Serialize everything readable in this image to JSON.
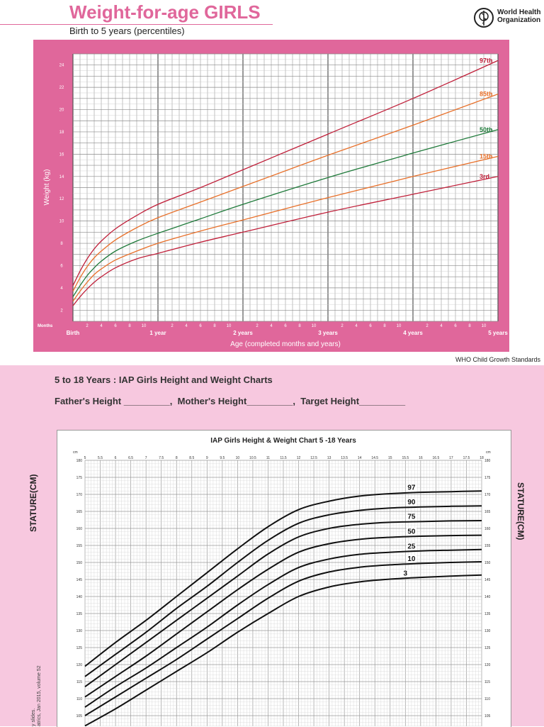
{
  "who": {
    "title": "Weight-for-age GIRLS",
    "subtitle": "Birth to 5 years (percentiles)",
    "org_line1": "World Health",
    "org_line2": "Organization",
    "standards": "WHO Child Growth Standards"
  },
  "iap": {
    "heading": "5 to 18 Years : IAP Girls Height and Weight Charts",
    "parents_line": "Father's Height _________,  Mother's Height_________,  Target Height_________",
    "side_note_1": "y slides.",
    "side_note_2": "atrics, Jan 2015, volume 52"
  },
  "colors": {
    "who_pink": "#e0679b",
    "p97": "#c0203a",
    "p85": "#e8702a",
    "p50": "#1f7a3a",
    "p15": "#e8702a",
    "p3": "#c0203a",
    "iap_bg": "#f7c8df"
  },
  "chart_data": [
    {
      "type": "line",
      "ylabel": "Weight (kg)",
      "xlabel": "Age (completed months and years)",
      "x_start_label": "Months",
      "x_units": "months",
      "xlim": [
        0,
        60
      ],
      "ylim": [
        1,
        25
      ],
      "y_ticks": [
        2,
        4,
        6,
        8,
        10,
        12,
        14,
        16,
        18,
        20,
        22,
        24
      ],
      "year_labels": [
        {
          "month": 0,
          "label": "Birth"
        },
        {
          "month": 12,
          "label": "1 year"
        },
        {
          "month": 24,
          "label": "2 years"
        },
        {
          "month": 36,
          "label": "3 years"
        },
        {
          "month": 48,
          "label": "4 years"
        },
        {
          "month": 60,
          "label": "5 years"
        }
      ],
      "month_ticks": [
        "2",
        "4",
        "6",
        "8",
        "10"
      ],
      "grid": true,
      "series": [
        {
          "name": "97th",
          "x": [
            0,
            1,
            2,
            3,
            4,
            6,
            9,
            12,
            18,
            24,
            36,
            48,
            60
          ],
          "values": [
            4.2,
            5.5,
            6.6,
            7.5,
            8.2,
            9.3,
            10.5,
            11.5,
            13.0,
            14.6,
            17.8,
            21.0,
            24.4
          ]
        },
        {
          "name": "85th",
          "x": [
            0,
            1,
            2,
            3,
            4,
            6,
            9,
            12,
            18,
            24,
            36,
            48,
            60
          ],
          "values": [
            3.7,
            4.9,
            5.9,
            6.7,
            7.3,
            8.3,
            9.4,
            10.3,
            11.7,
            13.1,
            15.9,
            18.6,
            21.4
          ]
        },
        {
          "name": "50th",
          "x": [
            0,
            1,
            2,
            3,
            4,
            6,
            9,
            12,
            18,
            24,
            36,
            48,
            60
          ],
          "values": [
            3.2,
            4.2,
            5.1,
            5.8,
            6.4,
            7.3,
            8.2,
            8.9,
            10.2,
            11.5,
            13.9,
            16.1,
            18.2
          ]
        },
        {
          "name": "15th",
          "x": [
            0,
            1,
            2,
            3,
            4,
            6,
            9,
            12,
            18,
            24,
            36,
            48,
            60
          ],
          "values": [
            2.8,
            3.7,
            4.5,
            5.2,
            5.7,
            6.5,
            7.3,
            8.0,
            9.1,
            10.1,
            12.1,
            14.0,
            15.8
          ]
        },
        {
          "name": "3rd",
          "x": [
            0,
            1,
            2,
            3,
            4,
            6,
            9,
            12,
            18,
            24,
            36,
            48,
            60
          ],
          "values": [
            2.4,
            3.2,
            3.9,
            4.5,
            5.0,
            5.8,
            6.6,
            7.1,
            8.1,
            9.0,
            10.8,
            12.4,
            14.0
          ]
        }
      ]
    },
    {
      "type": "line",
      "title": "IAP Girls Height & Weight Chart 5 -18 Years",
      "ylabel": "STATURE(CM)",
      "y_unit_label": "cm",
      "xlim": [
        5,
        18
      ],
      "ylim": [
        100,
        180
      ],
      "x_ticks": [
        "5",
        "5.5",
        "6",
        "6.5",
        "7",
        "7.5",
        "8",
        "8.5",
        "9",
        "9.5",
        "10",
        "10.5",
        "11",
        "11.5",
        "12",
        "12.5",
        "13",
        "13.5",
        "14",
        "14.5",
        "15",
        "15.5",
        "16",
        "16.5",
        "17",
        "17.5",
        "18"
      ],
      "y_ticks": [
        105,
        110,
        115,
        120,
        125,
        130,
        135,
        140,
        145,
        150,
        155,
        160,
        165,
        170,
        175,
        180
      ],
      "grid": true,
      "series": [
        {
          "name": "97",
          "x": [
            5,
            6,
            7,
            8,
            9,
            10,
            11,
            12,
            13,
            14,
            15,
            16,
            17,
            18
          ],
          "values": [
            119.5,
            126.5,
            133.0,
            140.0,
            147.0,
            154.0,
            160.5,
            165.5,
            168.0,
            169.5,
            170.2,
            170.6,
            170.8,
            171.0
          ]
        },
        {
          "name": "90",
          "x": [
            5,
            6,
            7,
            8,
            9,
            10,
            11,
            12,
            13,
            14,
            15,
            16,
            17,
            18
          ],
          "values": [
            116.5,
            123.0,
            129.5,
            136.5,
            143.0,
            150.0,
            156.5,
            161.5,
            164.0,
            165.3,
            166.0,
            166.3,
            166.5,
            166.6
          ]
        },
        {
          "name": "75",
          "x": [
            5,
            6,
            7,
            8,
            9,
            10,
            11,
            12,
            13,
            14,
            15,
            16,
            17,
            18
          ],
          "values": [
            113.5,
            120.0,
            126.5,
            133.0,
            139.5,
            146.0,
            152.5,
            157.5,
            160.0,
            161.2,
            161.8,
            162.0,
            162.2,
            162.3
          ]
        },
        {
          "name": "50",
          "x": [
            5,
            6,
            7,
            8,
            9,
            10,
            11,
            12,
            13,
            14,
            15,
            16,
            17,
            18
          ],
          "values": [
            110.5,
            116.5,
            122.5,
            129.0,
            135.5,
            142.0,
            148.0,
            153.0,
            155.5,
            156.8,
            157.4,
            157.7,
            157.9,
            158.0
          ]
        },
        {
          "name": "25",
          "x": [
            5,
            6,
            7,
            8,
            9,
            10,
            11,
            12,
            13,
            14,
            15,
            16,
            17,
            18
          ],
          "values": [
            107.5,
            113.5,
            119.0,
            125.0,
            131.0,
            137.5,
            143.5,
            148.5,
            151.0,
            152.4,
            153.0,
            153.4,
            153.6,
            153.8
          ]
        },
        {
          "name": "10",
          "x": [
            5,
            6,
            7,
            8,
            9,
            10,
            11,
            12,
            13,
            14,
            15,
            16,
            17,
            18
          ],
          "values": [
            105.0,
            110.5,
            116.0,
            121.5,
            127.5,
            133.5,
            139.5,
            144.5,
            147.2,
            148.6,
            149.3,
            149.7,
            150.0,
            150.2
          ]
        },
        {
          "name": "3",
          "x": [
            5,
            6,
            7,
            8,
            9,
            10,
            11,
            12,
            13,
            14,
            15,
            16,
            17,
            18
          ],
          "values": [
            102.0,
            107.0,
            112.5,
            118.0,
            123.5,
            129.5,
            135.0,
            140.0,
            142.8,
            144.3,
            145.1,
            145.6,
            146.0,
            146.3
          ]
        }
      ]
    }
  ]
}
